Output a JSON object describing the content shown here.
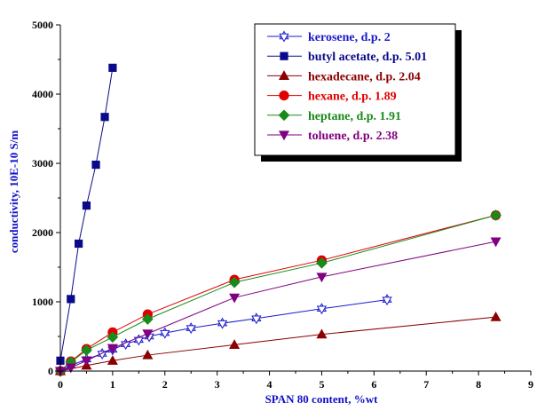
{
  "chart_data": {
    "type": "line",
    "title": "",
    "xlabel": "SPAN 80 content, %wt",
    "ylabel": "conductivity, 10E-10 S/m",
    "xlim": [
      0,
      9
    ],
    "ylim": [
      0,
      5000
    ],
    "xticks": [
      0,
      1,
      2,
      3,
      4,
      5,
      6,
      7,
      8,
      9
    ],
    "yticks": [
      0,
      1000,
      2000,
      3000,
      4000,
      5000
    ],
    "grid": false,
    "legend_position": "top-right",
    "series": [
      {
        "name": "kerosene, d.p. 2",
        "color": "#1a1acd",
        "marker": "star",
        "filled": false,
        "x": [
          0,
          0.2,
          0.5,
          0.8,
          1.0,
          1.25,
          1.5,
          1.7,
          2.0,
          2.5,
          3.1,
          3.75,
          5.0,
          6.25
        ],
        "y": [
          0,
          80,
          170,
          250,
          310,
          390,
          450,
          500,
          550,
          620,
          690,
          760,
          900,
          1030
        ]
      },
      {
        "name": "butyl acetate, d.p. 5.01",
        "color": "#0a0a8a",
        "marker": "square",
        "filled": true,
        "x": [
          0,
          0.2,
          0.35,
          0.5,
          0.68,
          0.85,
          1.0
        ],
        "y": [
          150,
          1040,
          1840,
          2390,
          2980,
          3670,
          4380
        ]
      },
      {
        "name": "hexadecane, d.p. 2.04",
        "color": "#8b0000",
        "marker": "triangle-up",
        "filled": true,
        "x": [
          0,
          0.5,
          1.0,
          1.67,
          3.33,
          5.0,
          8.33
        ],
        "y": [
          0,
          80,
          150,
          230,
          380,
          530,
          780
        ]
      },
      {
        "name": "hexane, d.p. 1.89",
        "color": "#e00000",
        "marker": "circle",
        "filled": true,
        "x": [
          0,
          0.2,
          0.5,
          1.0,
          1.67,
          3.33,
          5.0,
          8.33
        ],
        "y": [
          0,
          140,
          320,
          560,
          820,
          1320,
          1600,
          2250
        ]
      },
      {
        "name": "heptane, d.p. 1.91",
        "color": "#1a8a1a",
        "marker": "diamond",
        "filled": true,
        "x": [
          0,
          0.2,
          0.5,
          1.0,
          1.67,
          3.33,
          5.0,
          8.33
        ],
        "y": [
          0,
          130,
          300,
          490,
          750,
          1280,
          1560,
          2250
        ]
      },
      {
        "name": "toluene, d.p. 2.38",
        "color": "#800080",
        "marker": "triangle-down",
        "filled": true,
        "x": [
          0,
          0.2,
          0.5,
          1.0,
          1.67,
          3.33,
          5.0,
          8.33
        ],
        "y": [
          0,
          50,
          150,
          330,
          540,
          1060,
          1360,
          1870
        ]
      }
    ]
  }
}
